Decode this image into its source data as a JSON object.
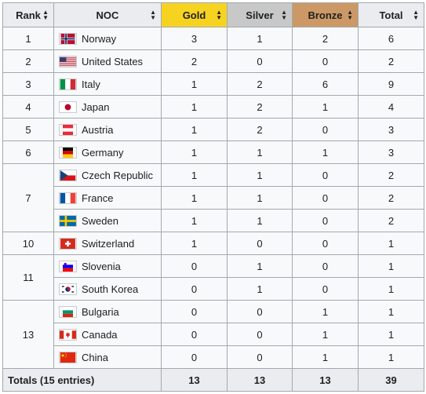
{
  "headers": {
    "rank": "Rank",
    "noc": "NOC",
    "gold": "Gold",
    "silver": "Silver",
    "bronze": "Bronze",
    "total": "Total"
  },
  "colors": {
    "gold": "#f7d321",
    "silver": "#c8c8c8",
    "bronze": "#cc9966",
    "header": "#eaecf0",
    "cell": "#f8f9fa",
    "border": "#a2a9b1"
  },
  "ranks": [
    "1",
    "2",
    "3",
    "4",
    "5",
    "6",
    "7",
    "10",
    "11",
    "13"
  ],
  "rows": [
    {
      "noc": "Norway",
      "flag": "norway-flag-icon",
      "gold": "3",
      "silver": "1",
      "bronze": "2",
      "total": "6"
    },
    {
      "noc": "United States",
      "flag": "united-states-flag-icon",
      "gold": "2",
      "silver": "0",
      "bronze": "0",
      "total": "2"
    },
    {
      "noc": "Italy",
      "flag": "italy-flag-icon",
      "gold": "1",
      "silver": "2",
      "bronze": "6",
      "total": "9"
    },
    {
      "noc": "Japan",
      "flag": "japan-flag-icon",
      "gold": "1",
      "silver": "2",
      "bronze": "1",
      "total": "4"
    },
    {
      "noc": "Austria",
      "flag": "austria-flag-icon",
      "gold": "1",
      "silver": "2",
      "bronze": "0",
      "total": "3"
    },
    {
      "noc": "Germany",
      "flag": "germany-flag-icon",
      "gold": "1",
      "silver": "1",
      "bronze": "1",
      "total": "3"
    },
    {
      "noc": "Czech Republic",
      "flag": "czech-republic-flag-icon",
      "gold": "1",
      "silver": "1",
      "bronze": "0",
      "total": "2"
    },
    {
      "noc": "France",
      "flag": "france-flag-icon",
      "gold": "1",
      "silver": "1",
      "bronze": "0",
      "total": "2"
    },
    {
      "noc": "Sweden",
      "flag": "sweden-flag-icon",
      "gold": "1",
      "silver": "1",
      "bronze": "0",
      "total": "2"
    },
    {
      "noc": "Switzerland",
      "flag": "switzerland-flag-icon",
      "gold": "1",
      "silver": "0",
      "bronze": "0",
      "total": "1"
    },
    {
      "noc": "Slovenia",
      "flag": "slovenia-flag-icon",
      "gold": "0",
      "silver": "1",
      "bronze": "0",
      "total": "1"
    },
    {
      "noc": "South Korea",
      "flag": "south-korea-flag-icon",
      "gold": "0",
      "silver": "1",
      "bronze": "0",
      "total": "1"
    },
    {
      "noc": "Bulgaria",
      "flag": "bulgaria-flag-icon",
      "gold": "0",
      "silver": "0",
      "bronze": "1",
      "total": "1"
    },
    {
      "noc": "Canada",
      "flag": "canada-flag-icon",
      "gold": "0",
      "silver": "0",
      "bronze": "1",
      "total": "1"
    },
    {
      "noc": "China",
      "flag": "china-flag-icon",
      "gold": "0",
      "silver": "0",
      "bronze": "1",
      "total": "1"
    }
  ],
  "totals": {
    "label": "Totals (15 entries)",
    "gold": "13",
    "silver": "13",
    "bronze": "13",
    "total": "39"
  }
}
